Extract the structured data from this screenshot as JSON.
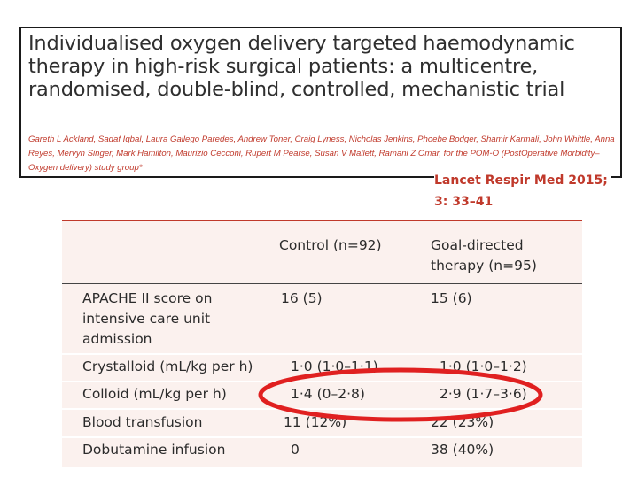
{
  "paper": {
    "title": "Individualised oxygen delivery targeted haemodynamic therapy in high-risk surgical patients: a multicentre, randomised, double-blind, controlled, mechanistic trial",
    "authors": "Gareth L Ackland, Sadaf Iqbal, Laura Gallego Paredes, Andrew Toner, Craig Lyness, Nicholas Jenkins, Phoebe Bodger, Shamir Karmali, John Whittle, Anna Reyes, Mervyn Singer, Mark Hamilton, Maurizio Cecconi, Rupert M Pearse, Susan V Mallett, Ramani Z Omar, for the POM-O (PostOperative Morbidity–Oxygen delivery) study group*",
    "citation_line1": "Lancet Respir Med 2015;",
    "citation_line2": "3: 33–41"
  },
  "table": {
    "columns": [
      "",
      "Control (n=92)",
      "Goal-directed therapy (n=95)"
    ],
    "col2_line1": "Goal-directed",
    "col2_line2": "therapy (n=95)",
    "rows": [
      {
        "label": "APACHE II score on intensive care unit admission",
        "control": "16 (5)",
        "gdt": "15 (6)"
      },
      {
        "label": "Crystalloid (mL/kg per h)",
        "control": "1·0 (1·0–1·1)",
        "gdt": "1·0 (1·0–1·2)"
      },
      {
        "label": "Colloid (mL/kg per h)",
        "control": "1·4 (0–2·8)",
        "gdt": "2·9 (1·7–3·6)"
      },
      {
        "label": "Blood transfusion",
        "control": "11 (12%)",
        "gdt": "22 (23%)"
      },
      {
        "label": "Dobutamine infusion",
        "control": "0",
        "gdt": "38 (40%)"
      }
    ],
    "apache_l1": "APACHE II score on",
    "apache_l2": "intensive care unit",
    "apache_l3": "admission"
  },
  "colors": {
    "accent": "#c0392b",
    "annotation": "#e02020",
    "table_bg": "#fbf1ee"
  }
}
